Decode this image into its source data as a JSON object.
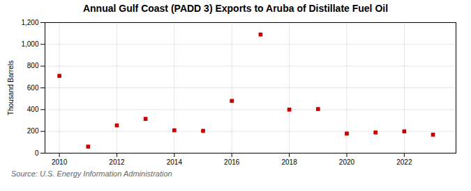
{
  "chart_data": {
    "type": "scatter",
    "title": "Annual Gulf Coast (PADD 3) Exports to Aruba of Distillate Fuel Oil",
    "y_label": "Thousand Barrels",
    "annotations": [
      "Source: U.S. Energy Information Administration"
    ],
    "x": [
      2010,
      2011,
      2012,
      2013,
      2014,
      2015,
      2016,
      2017,
      2018,
      2019,
      2020,
      2021,
      2022,
      2023
    ],
    "values": [
      710,
      60,
      255,
      315,
      210,
      205,
      480,
      1090,
      400,
      405,
      180,
      190,
      200,
      170
    ],
    "color": "#cc0000",
    "marker": "square",
    "xlim": [
      2009.5,
      2023.8
    ],
    "xticks": [
      2010,
      2012,
      2014,
      2016,
      2018,
      2020,
      2022
    ],
    "ylim": [
      0,
      1200
    ],
    "yticks": [
      0,
      200,
      400,
      600,
      800,
      {
        "value": 1000,
        "label": "1,000"
      },
      {
        "value": 1200,
        "label": "1,200"
      }
    ],
    "grid": true
  }
}
